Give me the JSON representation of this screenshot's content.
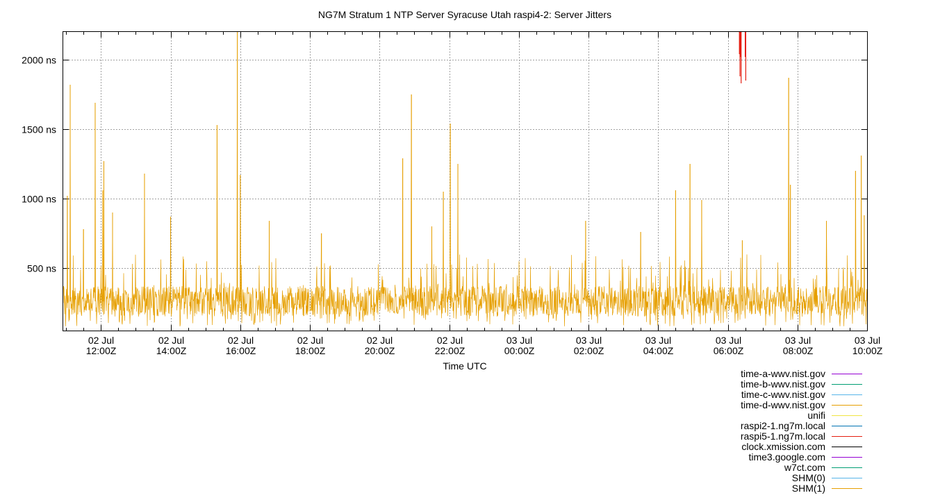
{
  "chart_data": {
    "type": "line",
    "title": "NG7M Stratum 1 NTP Server Syracuse Utah raspi4-2: Server Jitters",
    "xlabel": "Time UTC",
    "ylabel": "",
    "x_range": [
      "2025-07-02T10:55Z",
      "2025-07-03T10:00Z"
    ],
    "ylim": [
      50,
      2200
    ],
    "y_ticks": [
      {
        "value": 500,
        "label": "500 ns"
      },
      {
        "value": 1000,
        "label": "1000 ns"
      },
      {
        "value": 1500,
        "label": "1500 ns"
      },
      {
        "value": 2000,
        "label": "2000 ns"
      }
    ],
    "x_ticks": [
      {
        "time": "2025-07-02T12:00Z",
        "line1": "02 Jul",
        "line2": "12:00Z"
      },
      {
        "time": "2025-07-02T14:00Z",
        "line1": "02 Jul",
        "line2": "14:00Z"
      },
      {
        "time": "2025-07-02T16:00Z",
        "line1": "02 Jul",
        "line2": "16:00Z"
      },
      {
        "time": "2025-07-02T18:00Z",
        "line1": "02 Jul",
        "line2": "18:00Z"
      },
      {
        "time": "2025-07-02T20:00Z",
        "line1": "02 Jul",
        "line2": "20:00Z"
      },
      {
        "time": "2025-07-02T22:00Z",
        "line1": "02 Jul",
        "line2": "22:00Z"
      },
      {
        "time": "2025-07-03T00:00Z",
        "line1": "03 Jul",
        "line2": "00:00Z"
      },
      {
        "time": "2025-07-03T02:00Z",
        "line1": "03 Jul",
        "line2": "02:00Z"
      },
      {
        "time": "2025-07-03T04:00Z",
        "line1": "03 Jul",
        "line2": "04:00Z"
      },
      {
        "time": "2025-07-03T06:00Z",
        "line1": "03 Jul",
        "line2": "06:00Z"
      },
      {
        "time": "2025-07-03T08:00Z",
        "line1": "03 Jul",
        "line2": "08:00Z"
      },
      {
        "time": "2025-07-03T10:00Z",
        "line1": "03 Jul",
        "line2": "10:00Z"
      }
    ],
    "grid": true,
    "legend_position": "bottom-right",
    "series": [
      {
        "name": "time-a-wwv.nist.gov",
        "color": "#9400d3",
        "points": []
      },
      {
        "name": "time-b-wwv.nist.gov",
        "color": "#009e73",
        "points": []
      },
      {
        "name": "time-c-wwv.nist.gov",
        "color": "#56b4e9",
        "points": []
      },
      {
        "name": "time-d-wwv.nist.gov",
        "color": "#e69f00",
        "points": []
      },
      {
        "name": "unifi",
        "color": "#f0e442",
        "points": []
      },
      {
        "name": "raspi2-1.ng7m.local",
        "color": "#0072b2",
        "points": []
      },
      {
        "name": "raspi5-1.ng7m.local",
        "color": "#e51e10",
        "points": [
          {
            "t": "2025-07-03T06:20Z",
            "v": 2040
          },
          {
            "t": "2025-07-03T06:21Z",
            "v": 1880
          },
          {
            "t": "2025-07-03T06:22Z",
            "v": 2020
          },
          {
            "t": "2025-07-03T06:23Z",
            "v": 1830
          },
          {
            "t": "2025-07-03T06:30Z",
            "v": 2020
          },
          {
            "t": "2025-07-03T06:31Z",
            "v": 1850
          }
        ]
      },
      {
        "name": "clock.xmission.com",
        "color": "#000000",
        "points": []
      },
      {
        "name": "time3.google.com",
        "color": "#9400d3",
        "points": []
      },
      {
        "name": "w7ct.com",
        "color": "#009e73",
        "points": []
      },
      {
        "name": "SHM(0)",
        "color": "#56b4e9",
        "points": []
      },
      {
        "name": "SHM(1)",
        "color": "#e69f00",
        "baseline_range": [
          80,
          480
        ],
        "typical_level": 260,
        "peaks": [
          {
            "t": "2025-07-02T11:02Z",
            "v": 1020
          },
          {
            "t": "2025-07-02T11:07Z",
            "v": 1820
          },
          {
            "t": "2025-07-02T11:30Z",
            "v": 780
          },
          {
            "t": "2025-07-02T11:50Z",
            "v": 1690
          },
          {
            "t": "2025-07-02T12:03Z",
            "v": 1060
          },
          {
            "t": "2025-07-02T12:05Z",
            "v": 1270
          },
          {
            "t": "2025-07-02T12:20Z",
            "v": 900
          },
          {
            "t": "2025-07-02T13:15Z",
            "v": 1180
          },
          {
            "t": "2025-07-02T14:00Z",
            "v": 870
          },
          {
            "t": "2025-07-02T15:20Z",
            "v": 1530
          },
          {
            "t": "2025-07-02T15:55Z",
            "v": 2200
          },
          {
            "t": "2025-07-02T16:00Z",
            "v": 1170
          },
          {
            "t": "2025-07-02T16:50Z",
            "v": 840
          },
          {
            "t": "2025-07-02T18:20Z",
            "v": 750
          },
          {
            "t": "2025-07-02T20:40Z",
            "v": 1290
          },
          {
            "t": "2025-07-02T20:55Z",
            "v": 1750
          },
          {
            "t": "2025-07-02T21:30Z",
            "v": 800
          },
          {
            "t": "2025-07-02T21:50Z",
            "v": 1050
          },
          {
            "t": "2025-07-02T22:02Z",
            "v": 1540
          },
          {
            "t": "2025-07-02T22:15Z",
            "v": 1250
          },
          {
            "t": "2025-07-03T01:55Z",
            "v": 840
          },
          {
            "t": "2025-07-03T03:30Z",
            "v": 760
          },
          {
            "t": "2025-07-03T04:30Z",
            "v": 1060
          },
          {
            "t": "2025-07-03T04:55Z",
            "v": 1250
          },
          {
            "t": "2025-07-03T05:15Z",
            "v": 990
          },
          {
            "t": "2025-07-03T06:25Z",
            "v": 700
          },
          {
            "t": "2025-07-03T07:45Z",
            "v": 1870
          },
          {
            "t": "2025-07-03T07:48Z",
            "v": 1100
          },
          {
            "t": "2025-07-03T08:50Z",
            "v": 840
          },
          {
            "t": "2025-07-03T09:40Z",
            "v": 1200
          },
          {
            "t": "2025-07-03T09:50Z",
            "v": 1310
          },
          {
            "t": "2025-07-03T09:55Z",
            "v": 880
          }
        ]
      }
    ]
  }
}
